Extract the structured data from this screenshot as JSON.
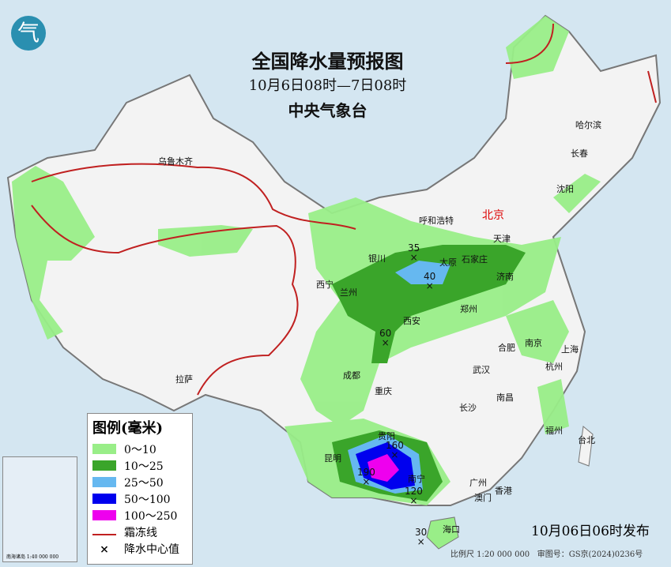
{
  "title": "全国降水量预报图",
  "period": "10月6日08时—7日08时",
  "agency": "中央气象台",
  "issued": "10月06日06时发布",
  "scale": "比例尺 1:20 000 000",
  "map_number": "审图号：GS京(2024)0236号",
  "inset_caption": "南海诸岛 1:40 000 000",
  "logo_text": "气",
  "legend": {
    "title": "图例(毫米)",
    "items": [
      {
        "label": "0～10",
        "color": "#99ee88"
      },
      {
        "label": "10～25",
        "color": "#3aa52a"
      },
      {
        "label": "25～50",
        "color": "#66b8f0"
      },
      {
        "label": "50～100",
        "color": "#0000ee"
      },
      {
        "label": "100～250",
        "color": "#ee00ee"
      }
    ],
    "frost_line": "霜冻线",
    "center_value": "降水中心值",
    "frost_color": "#c02020"
  },
  "cities": [
    {
      "name": "乌鲁木齐"
    },
    {
      "name": "哈尔滨"
    },
    {
      "name": "长春"
    },
    {
      "name": "沈阳"
    },
    {
      "name": "呼和浩特"
    },
    {
      "name": "北京",
      "capital": true
    },
    {
      "name": "天津"
    },
    {
      "name": "石家庄"
    },
    {
      "name": "太原"
    },
    {
      "name": "济南"
    },
    {
      "name": "银川"
    },
    {
      "name": "西宁"
    },
    {
      "name": "兰州"
    },
    {
      "name": "西安"
    },
    {
      "name": "郑州"
    },
    {
      "name": "合肥"
    },
    {
      "name": "南京"
    },
    {
      "name": "上海"
    },
    {
      "name": "杭州"
    },
    {
      "name": "成都"
    },
    {
      "name": "重庆"
    },
    {
      "name": "武汉"
    },
    {
      "name": "拉萨"
    },
    {
      "name": "长沙"
    },
    {
      "name": "南昌"
    },
    {
      "name": "福州"
    },
    {
      "name": "台北"
    },
    {
      "name": "贵阳"
    },
    {
      "name": "昆明"
    },
    {
      "name": "南宁"
    },
    {
      "name": "广州"
    },
    {
      "name": "澳门"
    },
    {
      "name": "香港"
    },
    {
      "name": "海口"
    }
  ],
  "precip_centers": [
    "35",
    "40",
    "60",
    "160",
    "190",
    "120",
    "30"
  ]
}
